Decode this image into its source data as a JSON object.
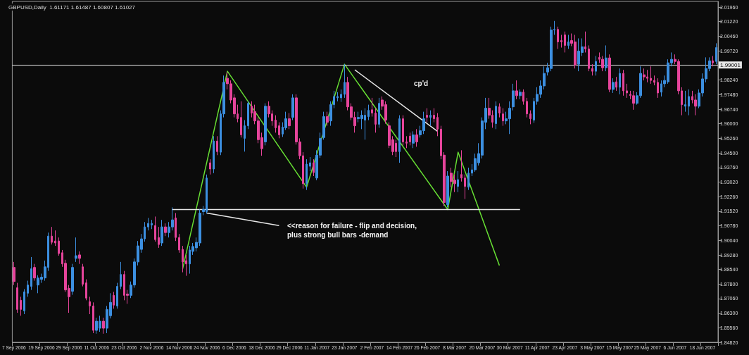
{
  "chart_data": {
    "type": "candlestick",
    "title": "GBPUSD,Daily  1.61171 1.61487 1.60807 1.61027",
    "categories": [
      "7 Sep 2006",
      null,
      null,
      null,
      null,
      null,
      null,
      null,
      "19 Sep 2006",
      null,
      null,
      null,
      null,
      null,
      null,
      null,
      "29 Sep 2006",
      null,
      null,
      null,
      null,
      null,
      null,
      null,
      "11 Oct 2006",
      null,
      null,
      null,
      null,
      null,
      null,
      null,
      "23 Oct 2006",
      null,
      null,
      null,
      null,
      null,
      null,
      null,
      "2 Nov 2006",
      null,
      null,
      null,
      null,
      null,
      null,
      null,
      "14 Nov 2006",
      null,
      null,
      null,
      null,
      null,
      null,
      null,
      "24 Nov 2006",
      null,
      null,
      null,
      null,
      null,
      null,
      null,
      "6 Dec 2006",
      null,
      null,
      null,
      null,
      null,
      null,
      null,
      "18 Dec 2006",
      null,
      null,
      null,
      null,
      null,
      null,
      null,
      "29 Dec 2006",
      null,
      null,
      null,
      null,
      null,
      null,
      null,
      "11 Jan 2007",
      null,
      null,
      null,
      null,
      null,
      null,
      null,
      "23 Jan 2007",
      null,
      null,
      null,
      null,
      null,
      null,
      null,
      "2 Feb 2007",
      null,
      null,
      null,
      null,
      null,
      null,
      null,
      "14 Feb 2007",
      null,
      null,
      null,
      null,
      null,
      null,
      null,
      "26 Feb 2007",
      null,
      null,
      null,
      null,
      null,
      null,
      null,
      "8 Mar 2007",
      null,
      null,
      null,
      null,
      null,
      null,
      null,
      "20 Mar 2007",
      null,
      null,
      null,
      null,
      null,
      null,
      null,
      "30 Mar 2007",
      null,
      null,
      null,
      null,
      null,
      null,
      null,
      "11 Apr 2007",
      null,
      null,
      null,
      null,
      null,
      null,
      null,
      "23 Apr 2007",
      null,
      null,
      null,
      null,
      null,
      null,
      null,
      "3 May 2007",
      null,
      null,
      null,
      null,
      null,
      null,
      null,
      "15 May 2007",
      null,
      null,
      null,
      null,
      null,
      null,
      null,
      "25 May 2007",
      null,
      null,
      null,
      null,
      null,
      null,
      null,
      "6 Jun 2007",
      null,
      null,
      null,
      null,
      null,
      null,
      null,
      "18 Jun 2007",
      null,
      null,
      null,
      null
    ],
    "colors": [
      "#e6449b",
      "#e6449b",
      "#e6449b",
      "#3c8fe0",
      "#3c8fe0",
      "#3c8fe0",
      "#e6449b",
      "#3c8fe0",
      "#3c8fe0",
      "#3c8fe0",
      "#3c8fe0",
      "#e6449b",
      "#e6449b",
      "#e6449b",
      "#e6449b",
      "#e6449b",
      "#e6449b",
      "#3c8fe0",
      "#3c8fe0",
      "#e6449b",
      "#e6449b",
      "#e6449b",
      "#e6449b",
      "#e6449b",
      "#3c8fe0",
      "#3c8fe0",
      "#e6449b",
      "#3c8fe0",
      "#3c8fe0",
      "#e6449b",
      "#3c8fe0",
      "#3c8fe0",
      "#e6449b",
      "#e6449b",
      "#3c8fe0",
      "#3c8fe0",
      "#3c8fe0",
      "#3c8fe0",
      "#3c8fe0",
      "#3c8fe0",
      "#3c8fe0",
      "#e6449b",
      "#e6449b",
      "#3c8fe0",
      "#e6449b",
      "#3c8fe0",
      "#3c8fe0",
      "#e6449b",
      "#e6449b",
      "#e6449b",
      "#e6449b",
      "#3c8fe0",
      "#3c8fe0",
      "#3c8fe0",
      "#3c8fe0",
      "#3c8fe0",
      "#3c8fe0",
      "#e6449b",
      "#3c8fe0",
      "#e6449b",
      "#3c8fe0",
      "#3c8fe0",
      "#e6449b",
      "#e6449b",
      "#e6449b",
      "#e6449b",
      "#e6449b",
      "#3c8fe0",
      "#3c8fe0",
      "#e6449b",
      "#e6449b",
      "#e6449b",
      "#e6449b",
      "#3c8fe0",
      "#e6449b",
      "#e6449b",
      "#e6449b",
      "#e6449b",
      "#3c8fe0",
      "#3c8fe0",
      "#e6449b",
      "#3c8fe0",
      "#e6449b",
      "#e6449b",
      "#e6449b",
      "#3c8fe0",
      "#3c8fe0",
      "#e6449b",
      "#3c8fe0",
      "#3c8fe0",
      "#3c8fe0",
      "#e6449b",
      "#3c8fe0",
      "#3c8fe0",
      "#3c8fe0",
      "#3c8fe0",
      "#3c8fe0",
      "#e6449b",
      "#e6449b",
      "#e6449b",
      "#3c8fe0",
      "#3c8fe0",
      "#3c8fe0",
      "#3c8fe0",
      "#e6449b",
      "#e6449b",
      "#3c8fe0",
      "#e6449b",
      "#e6449b",
      "#e6449b",
      "#e6449b",
      "#e6449b",
      "#3c8fe0",
      "#e6449b",
      "#e6449b",
      "#e6449b",
      "#3c8fe0",
      "#e6449b",
      "#3c8fe0",
      "#3c8fe0",
      "#e6449b",
      "#3c8fe0",
      "#e6449b",
      "#e6449b",
      "#e6449b",
      "#e6449b",
      "#3c8fe0",
      "#e6449b",
      "#e6449b",
      "#3c8fe0",
      "#e6449b",
      "#e6449b",
      "#3c8fe0",
      "#3c8fe0",
      "#3c8fe0",
      "#3c8fe0",
      "#3c8fe0",
      "#3c8fe0",
      "#e6449b",
      "#e6449b",
      "#3c8fe0",
      "#e6449b",
      "#e6449b",
      "#3c8fe0",
      "#3c8fe0",
      "#3c8fe0",
      "#e6449b",
      "#3c8fe0",
      "#e6449b",
      "#e6449b",
      "#e6449b",
      "#3c8fe0",
      "#3c8fe0",
      "#3c8fe0",
      "#3c8fe0",
      "#3c8fe0",
      "#3c8fe0",
      "#3c8fe0",
      "#e6449b",
      "#e6449b",
      "#e6449b",
      "#3c8fe0",
      "#e6449b",
      "#e6449b",
      "#3c8fe0",
      "#3c8fe0",
      "#e6449b",
      "#e6449b",
      "#e6449b",
      "#3c8fe0",
      "#e6449b",
      "#e6449b",
      "#3c8fe0",
      "#e6449b",
      "#3c8fe0",
      "#e6449b",
      "#3c8fe0",
      "#e6449b",
      "#e6449b",
      "#e6449b",
      "#e6449b",
      "#3c8fe0",
      "#3c8fe0",
      "#e6449b",
      "#e6449b",
      "#e6449b",
      "#e6449b",
      "#e6449b",
      "#3c8fe0",
      "#3c8fe0",
      "#3c8fe0",
      "#3c8fe0",
      "#e6449b",
      "#e6449b",
      "#e6449b",
      "#3c8fe0",
      "#3c8fe0",
      "#e6449b",
      "#e6449b",
      "#3c8fe0",
      "#3c8fe0",
      "#3c8fe0",
      "#3c8fe0",
      "#e6449b",
      "#3c8fe0"
    ],
    "ohlc": [
      [
        1.8865,
        1.8893,
        1.8775,
        1.8793
      ],
      [
        1.8761,
        1.8786,
        1.8633,
        1.865
      ],
      [
        1.8697,
        1.8715,
        1.8618,
        1.865
      ],
      [
        1.8643,
        1.8754,
        1.8626,
        1.874
      ],
      [
        1.8733,
        1.8797,
        1.8715,
        1.8775
      ],
      [
        1.8768,
        1.8918,
        1.875,
        1.8858
      ],
      [
        1.8865,
        1.8883,
        1.8797,
        1.8811
      ],
      [
        1.8775,
        1.8825,
        1.8733,
        1.8811
      ],
      [
        1.8804,
        1.8833,
        1.8786,
        1.8815
      ],
      [
        1.8811,
        1.89,
        1.8797,
        1.8868
      ],
      [
        1.8865,
        1.9043,
        1.8847,
        1.9025
      ],
      [
        1.9025,
        1.9072,
        1.8982,
        1.8993
      ],
      [
        1.9,
        1.9054,
        1.8975,
        1.899
      ],
      [
        1.9,
        1.9018,
        1.8925,
        1.8936
      ],
      [
        1.894,
        1.8954,
        1.8868,
        1.8883
      ],
      [
        1.8886,
        1.8904,
        1.874,
        1.875
      ],
      [
        1.8758,
        1.8775,
        1.8633,
        1.8715
      ],
      [
        1.8743,
        1.8883,
        1.8725,
        1.8865
      ],
      [
        1.8911,
        1.9018,
        1.8893,
        1.8925
      ],
      [
        1.8929,
        1.8947,
        1.8883,
        1.8911
      ],
      [
        1.8868,
        1.8883,
        1.8768,
        1.8779
      ],
      [
        1.8786,
        1.8804,
        1.8697,
        1.8708
      ],
      [
        1.869,
        1.8715,
        1.8626,
        1.8668
      ],
      [
        1.8668,
        1.8686,
        1.8529,
        1.8543
      ],
      [
        1.8543,
        1.8608,
        1.8526,
        1.859
      ],
      [
        1.8554,
        1.8618,
        1.8536,
        1.859
      ],
      [
        1.859,
        1.8608,
        1.8526,
        1.8554
      ],
      [
        1.8554,
        1.8668,
        1.8529,
        1.865
      ],
      [
        1.8618,
        1.8733,
        1.8604,
        1.8686
      ],
      [
        1.8722,
        1.874,
        1.8654,
        1.8672
      ],
      [
        1.8668,
        1.8786,
        1.8654,
        1.8768
      ],
      [
        1.8768,
        1.8893,
        1.8754,
        1.8829
      ],
      [
        1.8829,
        1.8847,
        1.8697,
        1.8722
      ],
      [
        1.8729,
        1.875,
        1.8679,
        1.8722
      ],
      [
        1.8722,
        1.8793,
        1.8708,
        1.8775
      ],
      [
        1.8775,
        1.8911,
        1.8761,
        1.8893
      ],
      [
        1.8893,
        1.9,
        1.8875,
        1.8975
      ],
      [
        1.8957,
        1.9036,
        1.894,
        1.9011
      ],
      [
        1.9011,
        1.9097,
        1.8997,
        1.9072
      ],
      [
        1.9072,
        1.9118,
        1.9054,
        1.909
      ],
      [
        1.9082,
        1.9108,
        1.9061,
        1.909
      ],
      [
        1.9079,
        1.9125,
        1.8997,
        1.9007
      ],
      [
        1.9018,
        1.9072,
        1.8965,
        1.8982
      ],
      [
        1.899,
        1.9108,
        1.8975,
        1.9072
      ],
      [
        1.9072,
        1.909,
        1.9025,
        1.9043
      ],
      [
        1.9043,
        1.9097,
        1.9018,
        1.9072
      ],
      [
        1.9072,
        1.9172,
        1.9054,
        1.9108
      ],
      [
        1.9118,
        1.9143,
        1.9,
        1.9018
      ],
      [
        1.9018,
        1.9036,
        1.894,
        1.8954
      ],
      [
        1.8957,
        1.8975,
        1.884,
        1.8893
      ],
      [
        1.89,
        1.8929,
        1.8822,
        1.8883
      ],
      [
        1.8883,
        1.8975,
        1.8833,
        1.8954
      ],
      [
        1.8947,
        1.899,
        1.8929,
        1.8972
      ],
      [
        1.8965,
        1.9018,
        1.8947,
        1.8993
      ],
      [
        1.899,
        1.9161,
        1.8975,
        1.9143
      ],
      [
        1.915,
        1.9179,
        1.9132,
        1.9161
      ],
      [
        1.915,
        1.934,
        1.914,
        1.9322
      ],
      [
        1.94,
        1.9418,
        1.934,
        1.9368
      ],
      [
        1.9368,
        1.9536,
        1.9347,
        1.9511
      ],
      [
        1.9511,
        1.9536,
        1.9439,
        1.9457
      ],
      [
        1.9454,
        1.9668,
        1.9439,
        1.965
      ],
      [
        1.965,
        1.9846,
        1.9632,
        1.9811
      ],
      [
        1.9832,
        1.9864,
        1.9775,
        1.9804
      ],
      [
        1.9804,
        1.9821,
        1.9704,
        1.9721
      ],
      [
        1.9732,
        1.975,
        1.9632,
        1.965
      ],
      [
        1.965,
        1.9697,
        1.9607,
        1.9625
      ],
      [
        1.9632,
        1.9714,
        1.9529,
        1.9543
      ],
      [
        1.9525,
        1.9618,
        1.9457,
        1.9589
      ],
      [
        1.9589,
        1.9714,
        1.9572,
        1.9704
      ],
      [
        1.9689,
        1.9714,
        1.9632,
        1.9654
      ],
      [
        1.9661,
        1.9697,
        1.9597,
        1.9614
      ],
      [
        1.9614,
        1.9632,
        1.95,
        1.9518
      ],
      [
        1.9529,
        1.9554,
        1.9436,
        1.9472
      ],
      [
        1.9507,
        1.9704,
        1.9489,
        1.9689
      ],
      [
        1.9689,
        1.9714,
        1.9632,
        1.965
      ],
      [
        1.965,
        1.9668,
        1.9589,
        1.9614
      ],
      [
        1.9618,
        1.9643,
        1.9554,
        1.9579
      ],
      [
        1.9589,
        1.9607,
        1.9525,
        1.9543
      ],
      [
        1.9547,
        1.9607,
        1.9532,
        1.9582
      ],
      [
        1.9579,
        1.9661,
        1.9568,
        1.9625
      ],
      [
        1.9625,
        1.9654,
        1.9572,
        1.9589
      ],
      [
        1.9632,
        1.975,
        1.9618,
        1.9732
      ],
      [
        1.9732,
        1.975,
        1.9493,
        1.9507
      ],
      [
        1.9507,
        1.9525,
        1.9418,
        1.9436
      ],
      [
        1.9436,
        1.9454,
        1.9268,
        1.9293
      ],
      [
        1.9293,
        1.9418,
        1.9261,
        1.9393
      ],
      [
        1.9382,
        1.9429,
        1.9357,
        1.94
      ],
      [
        1.94,
        1.9418,
        1.9332,
        1.935
      ],
      [
        1.9322,
        1.9464,
        1.9311,
        1.9439
      ],
      [
        1.9439,
        1.9554,
        1.9425,
        1.9525
      ],
      [
        1.9529,
        1.9661,
        1.9518,
        1.9636
      ],
      [
        1.9636,
        1.9661,
        1.9589,
        1.9607
      ],
      [
        1.9614,
        1.9714,
        1.9589,
        1.9697
      ],
      [
        1.9697,
        1.9768,
        1.9679,
        1.9739
      ],
      [
        1.9732,
        1.9761,
        1.9714,
        1.9739
      ],
      [
        1.9732,
        1.9775,
        1.9711,
        1.975
      ],
      [
        1.975,
        1.9904,
        1.9732,
        1.9811
      ],
      [
        1.9811,
        1.9839,
        1.9668,
        1.9686
      ],
      [
        1.9686,
        1.9704,
        1.9618,
        1.9632
      ],
      [
        1.9632,
        1.9661,
        1.9554,
        1.9589
      ],
      [
        1.9625,
        1.9661,
        1.9607,
        1.9632
      ],
      [
        1.9625,
        1.9668,
        1.9572,
        1.9643
      ],
      [
        1.9618,
        1.9679,
        1.9518,
        1.9643
      ],
      [
        1.9636,
        1.9697,
        1.9618,
        1.9668
      ],
      [
        1.9671,
        1.9732,
        1.9636,
        1.9654
      ],
      [
        1.9654,
        1.9679,
        1.9554,
        1.9597
      ],
      [
        1.9597,
        1.9732,
        1.9579,
        1.9704
      ],
      [
        1.9721,
        1.9739,
        1.9671,
        1.9689
      ],
      [
        1.9697,
        1.9714,
        1.96,
        1.9618
      ],
      [
        1.9589,
        1.9607,
        1.9475,
        1.9489
      ],
      [
        1.9518,
        1.9536,
        1.9439,
        1.9457
      ],
      [
        1.95,
        1.9518,
        1.9429,
        1.9457
      ],
      [
        1.9457,
        1.9643,
        1.94,
        1.9625
      ],
      [
        1.9625,
        1.9643,
        1.9489,
        1.9507
      ],
      [
        1.9507,
        1.9536,
        1.9475,
        1.95
      ],
      [
        1.9536,
        1.9554,
        1.9489,
        1.9507
      ],
      [
        1.95,
        1.9561,
        1.9475,
        1.9543
      ],
      [
        1.9543,
        1.9572,
        1.9482,
        1.9507
      ],
      [
        1.9543,
        1.9589,
        1.9529,
        1.9564
      ],
      [
        1.9564,
        1.9661,
        1.9547,
        1.9625
      ],
      [
        1.9643,
        1.9679,
        1.9607,
        1.9632
      ],
      [
        1.9632,
        1.9668,
        1.9589,
        1.9643
      ],
      [
        1.9643,
        1.9679,
        1.9607,
        1.9625
      ],
      [
        1.9632,
        1.9654,
        1.9536,
        1.9572
      ],
      [
        1.9572,
        1.9589,
        1.9418,
        1.9436
      ],
      [
        1.9439,
        1.9454,
        1.9179,
        1.9197
      ],
      [
        1.9186,
        1.9357,
        1.9172,
        1.9332
      ],
      [
        1.9347,
        1.9375,
        1.9275,
        1.9304
      ],
      [
        1.9311,
        1.934,
        1.925,
        1.9293
      ],
      [
        1.9279,
        1.9357,
        1.925,
        1.9314
      ],
      [
        1.934,
        1.9464,
        1.9304,
        1.9322
      ],
      [
        1.9322,
        1.934,
        1.9215,
        1.9279
      ],
      [
        1.9275,
        1.9375,
        1.9261,
        1.9347
      ],
      [
        1.9347,
        1.9393,
        1.9332,
        1.9364
      ],
      [
        1.9364,
        1.9447,
        1.9354,
        1.9422
      ],
      [
        1.94,
        1.95,
        1.9386,
        1.9447
      ],
      [
        1.9439,
        1.9632,
        1.9422,
        1.9614
      ],
      [
        1.9607,
        1.9732,
        1.9572,
        1.9679
      ],
      [
        1.9679,
        1.9732,
        1.9625,
        1.9643
      ],
      [
        1.9643,
        1.9668,
        1.9579,
        1.9607
      ],
      [
        1.96,
        1.9714,
        1.9572,
        1.9689
      ],
      [
        1.9686,
        1.9704,
        1.9632,
        1.9654
      ],
      [
        1.965,
        1.9679,
        1.9589,
        1.9614
      ],
      [
        1.9614,
        1.9661,
        1.9597,
        1.9625
      ],
      [
        1.9625,
        1.9714,
        1.9547,
        1.9679
      ],
      [
        1.9686,
        1.9804,
        1.9668,
        1.9768
      ],
      [
        1.9768,
        1.9821,
        1.9725,
        1.9743
      ],
      [
        1.9743,
        1.9775,
        1.9725,
        1.9761
      ],
      [
        1.9761,
        1.9775,
        1.9697,
        1.9714
      ],
      [
        1.9714,
        1.9732,
        1.9632,
        1.965
      ],
      [
        1.965,
        1.9668,
        1.9597,
        1.9625
      ],
      [
        1.9618,
        1.9732,
        1.9604,
        1.9714
      ],
      [
        1.9714,
        1.9786,
        1.9697,
        1.975
      ],
      [
        1.975,
        1.9821,
        1.9732,
        1.9793
      ],
      [
        1.9793,
        1.9893,
        1.9775,
        1.9857
      ],
      [
        1.9864,
        1.9911,
        1.9846,
        1.9886
      ],
      [
        1.9882,
        2.0096,
        1.9868,
        2.0079
      ],
      [
        2.0079,
        2.0125,
        2.0054,
        2.0082
      ],
      [
        2.0082,
        2.0096,
        1.9982,
        2.0018
      ],
      [
        2.0025,
        2.0054,
        1.9989,
        2.0018
      ],
      [
        2.0054,
        2.0071,
        1.9964,
        2.0
      ],
      [
        2.0,
        2.0054,
        1.9982,
        2.0018
      ],
      [
        2.0025,
        2.0061,
        1.9996,
        2.0011
      ],
      [
        2.0018,
        2.0054,
        1.9882,
        1.99
      ],
      [
        1.9904,
        2.0036,
        1.9868,
        1.9971
      ],
      [
        1.9964,
        2.0036,
        1.9946,
        1.9993
      ],
      [
        1.9993,
        2.0071,
        1.9964,
        1.9982
      ],
      [
        1.9982,
        2.0,
        1.9868,
        1.9882
      ],
      [
        1.9882,
        1.9904,
        1.9846,
        1.9868
      ],
      [
        1.9868,
        1.9946,
        1.9846,
        1.9918
      ],
      [
        1.9939,
        1.9964,
        1.9911,
        1.9929
      ],
      [
        1.9929,
        1.9946,
        1.9868,
        1.9886
      ],
      [
        1.9886,
        2.0,
        1.9868,
        1.9936
      ],
      [
        1.9936,
        1.9954,
        1.9761,
        1.9775
      ],
      [
        1.9775,
        1.9832,
        1.9757,
        1.9811
      ],
      [
        1.9814,
        1.9839,
        1.9768,
        1.9786
      ],
      [
        1.9786,
        1.9882,
        1.975,
        1.9857
      ],
      [
        1.9857,
        1.9875,
        1.9743,
        1.9768
      ],
      [
        1.9768,
        1.9804,
        1.9732,
        1.9757
      ],
      [
        1.975,
        1.9768,
        1.9725,
        1.9743
      ],
      [
        1.9743,
        1.9768,
        1.9671,
        1.9704
      ],
      [
        1.9704,
        1.9761,
        1.9697,
        1.9743
      ],
      [
        1.9743,
        1.9893,
        1.9732,
        1.9857
      ],
      [
        1.985,
        1.9882,
        1.9821,
        1.9839
      ],
      [
        1.9839,
        1.9875,
        1.9811,
        1.9832
      ],
      [
        1.9832,
        1.9893,
        1.9804,
        1.9821
      ],
      [
        1.9821,
        1.9846,
        1.9796,
        1.9811
      ],
      [
        1.9811,
        1.9832,
        1.9732,
        1.9757
      ],
      [
        1.9761,
        1.9821,
        1.9739,
        1.9804
      ],
      [
        1.9804,
        1.9846,
        1.9786,
        1.9821
      ],
      [
        1.9814,
        1.9929,
        1.9804,
        1.9911
      ],
      [
        1.9911,
        1.9964,
        1.9893,
        1.9929
      ],
      [
        1.9929,
        1.9954,
        1.9904,
        1.9918
      ],
      [
        1.9918,
        1.9929,
        1.975,
        1.9768
      ],
      [
        1.9768,
        1.9786,
        1.9643,
        1.9697
      ],
      [
        1.9689,
        1.9768,
        1.9661,
        1.9697
      ],
      [
        1.9689,
        1.9775,
        1.9643,
        1.9739
      ],
      [
        1.9739,
        1.9768,
        1.9704,
        1.9721
      ],
      [
        1.9721,
        1.975,
        1.9643,
        1.9689
      ],
      [
        1.9689,
        1.9775,
        1.9679,
        1.9757
      ],
      [
        1.9757,
        1.9857,
        1.9739,
        1.9829
      ],
      [
        1.9829,
        1.9939,
        1.9811,
        1.9882
      ],
      [
        1.9882,
        1.9939,
        1.9868,
        1.9921
      ],
      [
        1.9921,
        1.9946,
        1.9893,
        1.9911
      ],
      [
        1.9918,
        2.0011,
        1.9904,
        1.9989
      ]
    ],
    "series": [
      {
        "type": "line",
        "color": "#66dd33",
        "values": [
          null,
          null,
          null,
          null,
          null,
          null,
          null,
          null,
          null,
          null,
          null,
          null,
          null,
          null,
          null,
          null,
          null,
          null,
          null,
          null,
          null,
          null,
          null,
          null,
          null,
          null,
          null,
          null,
          null,
          null,
          null,
          null,
          null,
          null,
          null,
          null,
          null,
          null,
          null,
          null,
          null,
          null,
          null,
          null,
          null,
          null,
          null,
          null,
          null,
          1.8858,
          null,
          null,
          null,
          null,
          null,
          null,
          null,
          null,
          null,
          null,
          null,
          null,
          1.9868,
          null,
          null,
          null,
          null,
          null,
          null,
          null,
          null,
          null,
          null,
          null,
          null,
          null,
          null,
          null,
          null,
          null,
          null,
          null,
          null,
          null,
          null,
          1.9275,
          null,
          null,
          null,
          null,
          null,
          null,
          null,
          null,
          null,
          null,
          1.9904,
          null,
          null,
          null,
          null,
          null,
          null,
          null,
          null,
          null,
          null,
          null,
          null,
          null,
          null,
          null,
          null,
          null,
          null,
          null,
          null,
          null,
          null,
          null,
          null,
          null,
          null,
          null,
          null,
          null,
          1.9161,
          null,
          null,
          1.9454,
          null,
          null,
          null,
          null,
          null,
          null,
          null,
          null,
          null,
          null,
          null,
          1.8875,
          null,
          null,
          null,
          null,
          null,
          null,
          null,
          null,
          null,
          null,
          null,
          null,
          null,
          null,
          null,
          null,
          null,
          null,
          null,
          null,
          null,
          null,
          null,
          null,
          null,
          null,
          null,
          null,
          null,
          null,
          null,
          null,
          null,
          null,
          null,
          null,
          null,
          null,
          null,
          null,
          null,
          null,
          null,
          null,
          null,
          null,
          null,
          null,
          null,
          null,
          null,
          null,
          null,
          null,
          null,
          null,
          null,
          null,
          null,
          null,
          null,
          null,
          null
        ]
      },
      {
        "type": "line",
        "color": "#e6e6e6",
        "values": [
          null,
          null,
          null,
          null,
          null,
          null,
          null,
          null,
          null,
          null,
          null,
          null,
          null,
          null,
          null,
          null,
          null,
          null,
          null,
          null,
          null,
          null,
          null,
          null,
          null,
          null,
          null,
          null,
          null,
          null,
          null,
          null,
          null,
          null,
          null,
          null,
          null,
          null,
          null,
          null,
          null,
          null,
          null,
          null,
          null,
          null,
          1.9161,
          null,
          null,
          null,
          null,
          null,
          null,
          null,
          null,
          null,
          null,
          null,
          null,
          null,
          null,
          null,
          null,
          null,
          null,
          null,
          null,
          null,
          null,
          null,
          null,
          null,
          null,
          null,
          null,
          null,
          null,
          null,
          null,
          null,
          null,
          null,
          null,
          null,
          null,
          null,
          null,
          null,
          null,
          null,
          null,
          null,
          null,
          null,
          null,
          null,
          null,
          null,
          null,
          null,
          null,
          null,
          null,
          null,
          null,
          null,
          null,
          null,
          null,
          null,
          null,
          null,
          null,
          null,
          null,
          null,
          null,
          null,
          null,
          null,
          null,
          null,
          null,
          null,
          null,
          null,
          null,
          null,
          null,
          null,
          null,
          null,
          null,
          null,
          null,
          null,
          null,
          null,
          null,
          null,
          null,
          null,
          null,
          null,
          null,
          null,
          null,
          1.9161,
          null,
          null,
          null,
          null,
          null,
          null,
          null,
          null,
          null,
          null,
          null,
          null,
          null,
          null,
          null,
          null,
          null,
          null,
          null,
          null,
          null,
          null,
          null,
          null,
          null,
          null,
          null,
          null,
          null,
          null,
          null,
          null,
          null,
          null,
          null,
          null,
          null,
          null,
          null,
          null,
          null,
          null,
          null,
          null,
          null,
          null,
          null,
          null,
          null,
          null,
          null,
          null,
          null,
          null,
          null,
          null,
          null
        ]
      },
      {
        "type": "line",
        "color": "#e6e6e6",
        "values": [
          null,
          null,
          null,
          null,
          null,
          null,
          null,
          null,
          null,
          null,
          null,
          null,
          null,
          null,
          null,
          null,
          null,
          null,
          null,
          null,
          null,
          null,
          null,
          null,
          null,
          null,
          null,
          null,
          null,
          null,
          null,
          null,
          null,
          null,
          null,
          null,
          null,
          null,
          null,
          null,
          null,
          null,
          null,
          null,
          null,
          null,
          null,
          null,
          null,
          null,
          null,
          null,
          null,
          null,
          null,
          null,
          1.9143,
          null,
          null,
          null,
          null,
          null,
          null,
          null,
          null,
          null,
          null,
          null,
          null,
          null,
          null,
          null,
          null,
          null,
          null,
          null,
          null,
          1.9079,
          null,
          null,
          null,
          null,
          null,
          null,
          null,
          null,
          null,
          null,
          null,
          null,
          null,
          null,
          null,
          null,
          null,
          null,
          null,
          null,
          null,
          null,
          null,
          null,
          null,
          null,
          null,
          null,
          null,
          null,
          null,
          null,
          null,
          null,
          null,
          null,
          null,
          null,
          null,
          null,
          null,
          null,
          null,
          null,
          null,
          null,
          null,
          null,
          null,
          null,
          null,
          null,
          null,
          null,
          null,
          null,
          null,
          null,
          null,
          null,
          null,
          null,
          null,
          null,
          null,
          null,
          null,
          null,
          null,
          null,
          null,
          null,
          null,
          null,
          null,
          null,
          null,
          null,
          null,
          null,
          null,
          null,
          null,
          null,
          null,
          null,
          null,
          null,
          null,
          null,
          null,
          null,
          null,
          null,
          null,
          null,
          null,
          null,
          null,
          null,
          null,
          null,
          null,
          null,
          null,
          null,
          null,
          null,
          null,
          null,
          null,
          null,
          null,
          null,
          null,
          null,
          null,
          null,
          null,
          null,
          null,
          null,
          null,
          null,
          null,
          null,
          null
        ]
      },
      {
        "type": "line",
        "color": "#e6e6e6",
        "values": [
          null,
          null,
          null,
          null,
          null,
          null,
          null,
          null,
          null,
          null,
          null,
          null,
          null,
          null,
          null,
          null,
          null,
          null,
          null,
          null,
          null,
          null,
          null,
          null,
          null,
          null,
          null,
          null,
          null,
          null,
          null,
          null,
          null,
          null,
          null,
          null,
          null,
          null,
          null,
          null,
          null,
          null,
          null,
          null,
          null,
          null,
          null,
          null,
          null,
          null,
          null,
          null,
          null,
          null,
          null,
          null,
          null,
          null,
          null,
          null,
          null,
          null,
          null,
          null,
          null,
          null,
          null,
          null,
          null,
          null,
          null,
          null,
          null,
          null,
          null,
          null,
          null,
          null,
          null,
          null,
          null,
          null,
          null,
          null,
          null,
          null,
          null,
          null,
          null,
          null,
          null,
          null,
          null,
          null,
          null,
          null,
          null,
          null,
          null,
          1.9875,
          null,
          null,
          null,
          null,
          null,
          null,
          null,
          null,
          null,
          null,
          null,
          null,
          null,
          null,
          null,
          null,
          null,
          null,
          null,
          null,
          null,
          null,
          null,
          1.9561,
          null,
          null,
          null,
          null,
          null,
          null,
          null,
          null,
          null,
          null,
          null,
          null,
          null,
          null,
          null,
          null,
          null,
          null,
          null,
          null,
          null,
          null,
          null,
          null,
          null,
          null,
          null,
          null,
          null,
          null,
          null,
          null,
          null,
          null,
          null,
          null,
          null,
          null,
          null,
          null,
          null,
          null,
          null,
          null,
          null,
          null,
          null,
          null,
          null,
          null,
          null,
          null,
          null,
          null,
          null,
          null,
          null,
          null,
          null,
          null,
          null,
          null,
          null,
          null,
          null,
          null,
          null,
          null,
          null,
          null,
          null,
          null,
          null,
          null,
          null,
          null,
          null,
          null,
          null,
          null,
          null
        ]
      }
    ],
    "ref_lines": [
      {
        "axis": "y",
        "value": 1.99001,
        "label": "1.99001",
        "color": "#e6e6e6"
      }
    ],
    "annotations": [
      "cp'd",
      "<<reason for failure - flip and decision,\nplus strong bull bars -demand"
    ],
    "ylim": [
      1.8482,
      2.0225
    ],
    "yticks": [
      {
        "value": 2.0196,
        "label": "2.01960"
      },
      {
        "value": 2.0122,
        "label": "2.01220"
      },
      {
        "value": 2.0046,
        "label": "2.00460"
      },
      {
        "value": 1.9972,
        "label": "1.99720"
      },
      {
        "value": 1.9824,
        "label": "1.98240"
      },
      {
        "value": 1.9748,
        "label": "1.97480"
      },
      {
        "value": 1.9674,
        "label": "1.96740"
      },
      {
        "value": 1.96,
        "label": "1.96000"
      },
      {
        "value": 1.9526,
        "label": "1.95260"
      },
      {
        "value": 1.945,
        "label": "1.94500"
      },
      {
        "value": 1.9376,
        "label": "1.93760"
      },
      {
        "value": 1.9302,
        "label": "1.93020"
      },
      {
        "value": 1.9226,
        "label": "1.92260"
      },
      {
        "value": 1.9152,
        "label": "1.91520"
      },
      {
        "value": 1.9078,
        "label": "1.90780"
      },
      {
        "value": 1.9004,
        "label": "1.90040"
      },
      {
        "value": 1.8928,
        "label": "1.89280"
      },
      {
        "value": 1.8854,
        "label": "1.88540"
      },
      {
        "value": 1.878,
        "label": "1.87800"
      },
      {
        "value": 1.8706,
        "label": "1.87060"
      },
      {
        "value": 1.863,
        "label": "1.86300"
      },
      {
        "value": 1.8556,
        "label": "1.85560"
      },
      {
        "value": 1.8482,
        "label": "1.84820"
      }
    ]
  }
}
